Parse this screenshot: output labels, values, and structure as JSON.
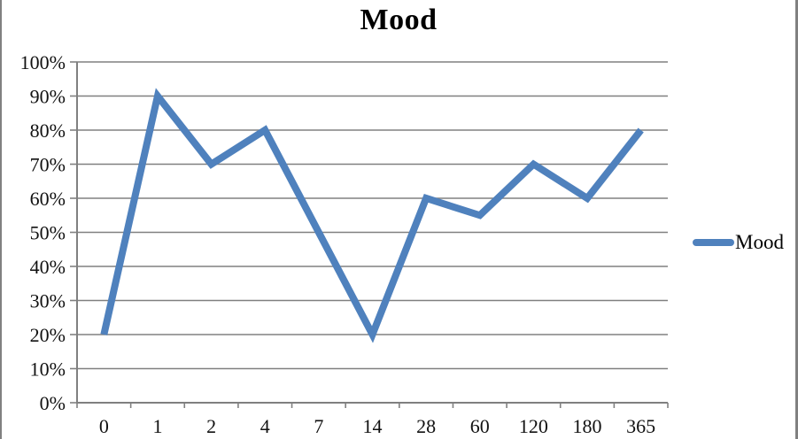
{
  "page": {
    "background": "#ffffff",
    "frame_border_color": "#808080"
  },
  "chart_data": {
    "type": "line",
    "title": "Mood",
    "categories": [
      "0",
      "1",
      "2",
      "4",
      "7",
      "14",
      "28",
      "60",
      "120",
      "180",
      "365"
    ],
    "series": [
      {
        "name": "Mood",
        "values": [
          20,
          90,
          70,
          80,
          50,
          20,
          60,
          55,
          70,
          60,
          80
        ],
        "color": "#4F81BD"
      }
    ],
    "ylim": [
      0,
      100
    ],
    "ytick_step": 10,
    "ytick_labels": [
      "0%",
      "10%",
      "20%",
      "30%",
      "40%",
      "50%",
      "60%",
      "70%",
      "80%",
      "90%",
      "100%"
    ],
    "grid": true,
    "gridline_color": "#808080",
    "axis_color": "#808080",
    "text_color": "#111111",
    "legend": {
      "position": "right",
      "entries": [
        "Mood"
      ]
    }
  }
}
